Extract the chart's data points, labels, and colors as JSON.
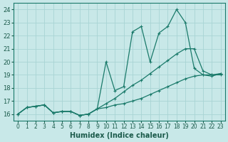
{
  "xlabel": "Humidex (Indice chaleur)",
  "bg_color": "#c8e8e8",
  "grid_color": "#a8d4d4",
  "line_color": "#1a7a6a",
  "xlim": [
    -0.5,
    23.5
  ],
  "ylim": [
    15.5,
    24.5
  ],
  "yticks": [
    16,
    17,
    18,
    19,
    20,
    21,
    22,
    23,
    24
  ],
  "xticks": [
    0,
    1,
    2,
    3,
    4,
    5,
    6,
    7,
    8,
    9,
    10,
    11,
    12,
    13,
    14,
    15,
    16,
    17,
    18,
    19,
    20,
    21,
    22,
    23
  ],
  "line1_x": [
    0,
    1,
    2,
    3,
    4,
    5,
    6,
    7,
    8,
    9,
    10,
    11,
    12,
    13,
    14,
    15,
    16,
    17,
    18,
    19,
    20,
    21,
    22,
    23
  ],
  "line1_y": [
    16.0,
    16.5,
    16.6,
    16.7,
    16.1,
    16.2,
    16.2,
    15.9,
    16.0,
    16.4,
    20.0,
    17.8,
    18.1,
    22.3,
    22.7,
    20.0,
    22.2,
    22.7,
    24.0,
    23.0,
    19.5,
    19.0,
    18.9,
    19.1
  ],
  "line2_x": [
    0,
    1,
    2,
    3,
    4,
    5,
    6,
    7,
    8,
    9,
    10,
    11,
    12,
    13,
    14,
    15,
    16,
    17,
    18,
    19,
    20,
    21,
    22,
    23
  ],
  "line2_y": [
    16.0,
    16.5,
    16.6,
    16.7,
    16.1,
    16.2,
    16.2,
    15.9,
    16.0,
    16.4,
    16.8,
    17.2,
    17.7,
    18.2,
    18.6,
    19.1,
    19.6,
    20.1,
    20.6,
    21.0,
    21.0,
    19.3,
    19.0,
    19.0
  ],
  "line3_x": [
    0,
    1,
    2,
    3,
    4,
    5,
    6,
    7,
    8,
    9,
    10,
    11,
    12,
    13,
    14,
    15,
    16,
    17,
    18,
    19,
    20,
    21,
    22,
    23
  ],
  "line3_y": [
    16.0,
    16.5,
    16.6,
    16.7,
    16.1,
    16.2,
    16.2,
    15.9,
    16.0,
    16.4,
    16.5,
    16.7,
    16.8,
    17.0,
    17.2,
    17.5,
    17.8,
    18.1,
    18.4,
    18.7,
    18.9,
    19.0,
    19.0,
    19.1
  ]
}
